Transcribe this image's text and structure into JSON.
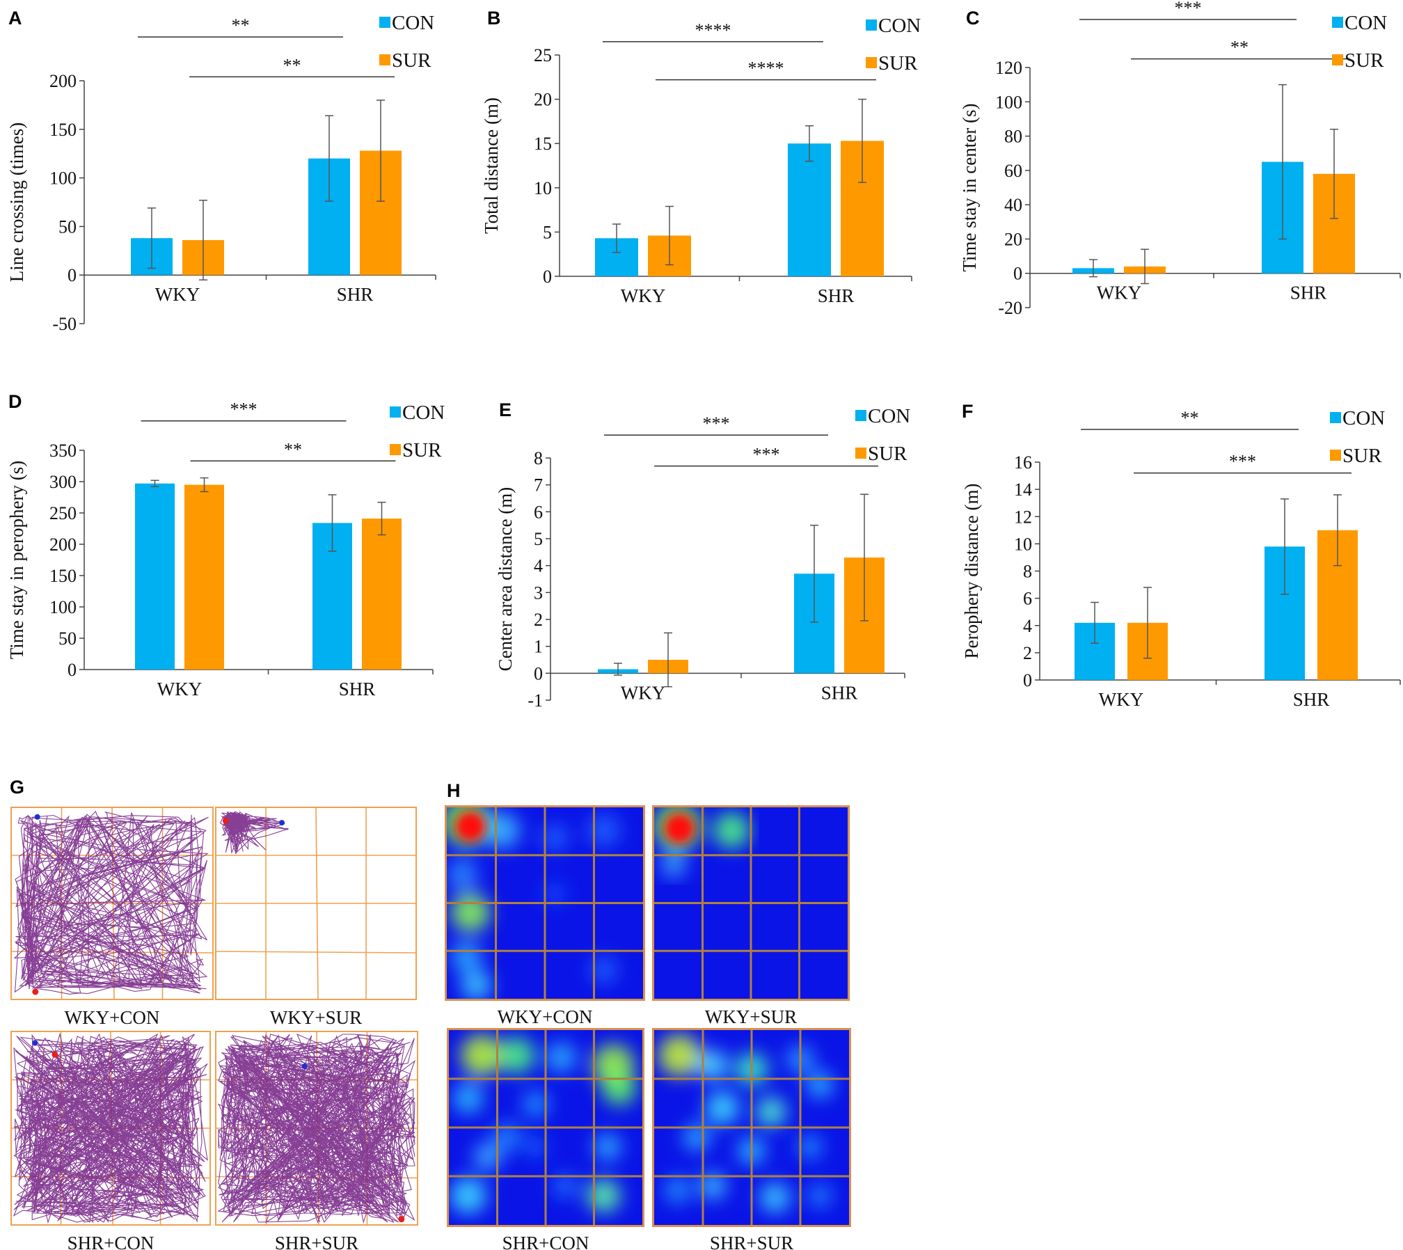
{
  "colors": {
    "con": "#00b0f0",
    "sur": "#ff9900",
    "axis": "#444444",
    "grid_lines": "#f0a050",
    "track": "#7a2a8a"
  },
  "chart_data": [
    {
      "id": "A",
      "type": "bar",
      "panel_label": "A",
      "ylabel": "Line crossing (times)",
      "categories": [
        "WKY",
        "SHR"
      ],
      "ylim": [
        -50,
        200
      ],
      "yticks": [
        -50,
        0,
        50,
        100,
        150,
        200
      ],
      "tick_labels": [
        "-50",
        "0",
        "50",
        "100",
        "150",
        "200"
      ],
      "series": [
        {
          "name": "CON",
          "values": [
            38,
            120
          ],
          "errors": [
            31,
            44
          ]
        },
        {
          "name": "SUR",
          "values": [
            36,
            128
          ],
          "errors": [
            41,
            52
          ]
        }
      ],
      "significance": [
        {
          "label": "**",
          "from": [
            0,
            0
          ],
          "to": [
            1,
            0
          ],
          "y": 245
        },
        {
          "label": "**",
          "from": [
            0,
            1
          ],
          "to": [
            1,
            1
          ],
          "y": 204
        }
      ],
      "legend": [
        "CON",
        "SUR"
      ]
    },
    {
      "id": "B",
      "type": "bar",
      "panel_label": "B",
      "ylabel": "Total distance (m)",
      "categories": [
        "WKY",
        "SHR"
      ],
      "ylim": [
        0,
        25
      ],
      "yticks": [
        0,
        5,
        10,
        15,
        20,
        25
      ],
      "tick_labels": [
        "0",
        "5",
        "10",
        "15",
        "20",
        "25"
      ],
      "series": [
        {
          "name": "CON",
          "values": [
            4.3,
            15.0
          ],
          "errors": [
            1.6,
            2.0
          ]
        },
        {
          "name": "SUR",
          "values": [
            4.6,
            15.3
          ],
          "errors": [
            3.3,
            4.7
          ]
        }
      ],
      "significance": [
        {
          "label": "****",
          "from": [
            0,
            0
          ],
          "to": [
            1,
            0
          ],
          "y": 26.5
        },
        {
          "label": "****",
          "from": [
            0,
            1
          ],
          "to": [
            1,
            1
          ],
          "y": 22.2
        }
      ],
      "legend": [
        "CON",
        "SUR"
      ]
    },
    {
      "id": "C",
      "type": "bar",
      "panel_label": "C",
      "ylabel": "Time stay in center (s)",
      "categories": [
        "WKY",
        "SHR"
      ],
      "ylim": [
        -20,
        120
      ],
      "yticks": [
        -20,
        0,
        20,
        40,
        60,
        80,
        100,
        120
      ],
      "tick_labels": [
        "-20",
        "0",
        "20",
        "40",
        "60",
        "80",
        "100",
        "120"
      ],
      "series": [
        {
          "name": "CON",
          "values": [
            3,
            65
          ],
          "errors": [
            5,
            45
          ]
        },
        {
          "name": "SUR",
          "values": [
            4,
            58
          ],
          "errors": [
            10,
            26
          ]
        }
      ],
      "significance": [
        {
          "label": "***",
          "from": [
            0,
            0
          ],
          "to": [
            1,
            0
          ],
          "y": 148
        },
        {
          "label": "**",
          "from": [
            0,
            1
          ],
          "to": [
            1,
            1
          ],
          "y": 125
        }
      ],
      "legend": [
        "CON",
        "SUR"
      ]
    },
    {
      "id": "D",
      "type": "bar",
      "panel_label": "D",
      "ylabel": "Time stay in perophery (s)",
      "categories": [
        "WKY",
        "SHR"
      ],
      "ylim": [
        0,
        350
      ],
      "yticks": [
        0,
        50,
        100,
        150,
        200,
        250,
        300,
        350
      ],
      "tick_labels": [
        "0",
        "50",
        "100",
        "150",
        "200",
        "250",
        "300",
        "350"
      ],
      "series": [
        {
          "name": "CON",
          "values": [
            297,
            234
          ],
          "errors": [
            5,
            45
          ]
        },
        {
          "name": "SUR",
          "values": [
            295,
            241
          ],
          "errors": [
            11,
            26
          ]
        }
      ],
      "significance": [
        {
          "label": "***",
          "from": [
            0,
            0
          ],
          "to": [
            1,
            0
          ],
          "y": 397
        },
        {
          "label": "**",
          "from": [
            0,
            1
          ],
          "to": [
            1,
            1
          ],
          "y": 333
        }
      ],
      "legend": [
        "CON",
        "SUR"
      ]
    },
    {
      "id": "E",
      "type": "bar",
      "panel_label": "E",
      "ylabel": "Center area distance (m)",
      "categories": [
        "WKY",
        "SHR"
      ],
      "ylim": [
        -1,
        8
      ],
      "yticks": [
        -1,
        0,
        1,
        2,
        3,
        4,
        5,
        6,
        7,
        8
      ],
      "tick_labels": [
        "-1",
        "0",
        "1",
        "2",
        "3",
        "4",
        "5",
        "6",
        "7",
        "8"
      ],
      "series": [
        {
          "name": "CON",
          "values": [
            0.15,
            3.7
          ],
          "errors": [
            0.22,
            1.8
          ]
        },
        {
          "name": "SUR",
          "values": [
            0.5,
            4.3
          ],
          "errors": [
            1.0,
            2.35
          ]
        }
      ],
      "significance": [
        {
          "label": "***",
          "from": [
            0,
            0
          ],
          "to": [
            1,
            0
          ],
          "y": 8.85
        },
        {
          "label": "***",
          "from": [
            0,
            1
          ],
          "to": [
            1,
            1
          ],
          "y": 7.7
        }
      ],
      "legend": [
        "CON",
        "SUR"
      ]
    },
    {
      "id": "F",
      "type": "bar",
      "panel_label": "F",
      "ylabel": "Perophery distance (m)",
      "categories": [
        "WKY",
        "SHR"
      ],
      "ylim": [
        0,
        16
      ],
      "yticks": [
        0,
        2,
        4,
        6,
        8,
        10,
        12,
        14,
        16
      ],
      "tick_labels": [
        "0",
        "2",
        "4",
        "6",
        "8",
        "10",
        "12",
        "14",
        "16"
      ],
      "series": [
        {
          "name": "CON",
          "values": [
            4.2,
            9.8
          ],
          "errors": [
            1.5,
            3.5
          ]
        },
        {
          "name": "SUR",
          "values": [
            4.2,
            11.0
          ],
          "errors": [
            2.6,
            2.6
          ]
        }
      ],
      "significance": [
        {
          "label": "**",
          "from": [
            0,
            0
          ],
          "to": [
            1,
            0
          ],
          "y": 18.4
        },
        {
          "label": "***",
          "from": [
            0,
            1
          ],
          "to": [
            1,
            1
          ],
          "y": 15.2
        }
      ],
      "legend": [
        "CON",
        "SUR"
      ]
    }
  ],
  "panel_g": {
    "label": "G",
    "maps": [
      {
        "caption": "WKY+CON"
      },
      {
        "caption": "WKY+SUR"
      },
      {
        "caption": "SHR+CON"
      },
      {
        "caption": "SHR+SUR"
      }
    ]
  },
  "panel_h": {
    "label": "H",
    "maps": [
      {
        "caption": "WKY+CON"
      },
      {
        "caption": "WKY+SUR"
      },
      {
        "caption": "SHR+CON"
      },
      {
        "caption": "SHR+SUR"
      }
    ]
  }
}
